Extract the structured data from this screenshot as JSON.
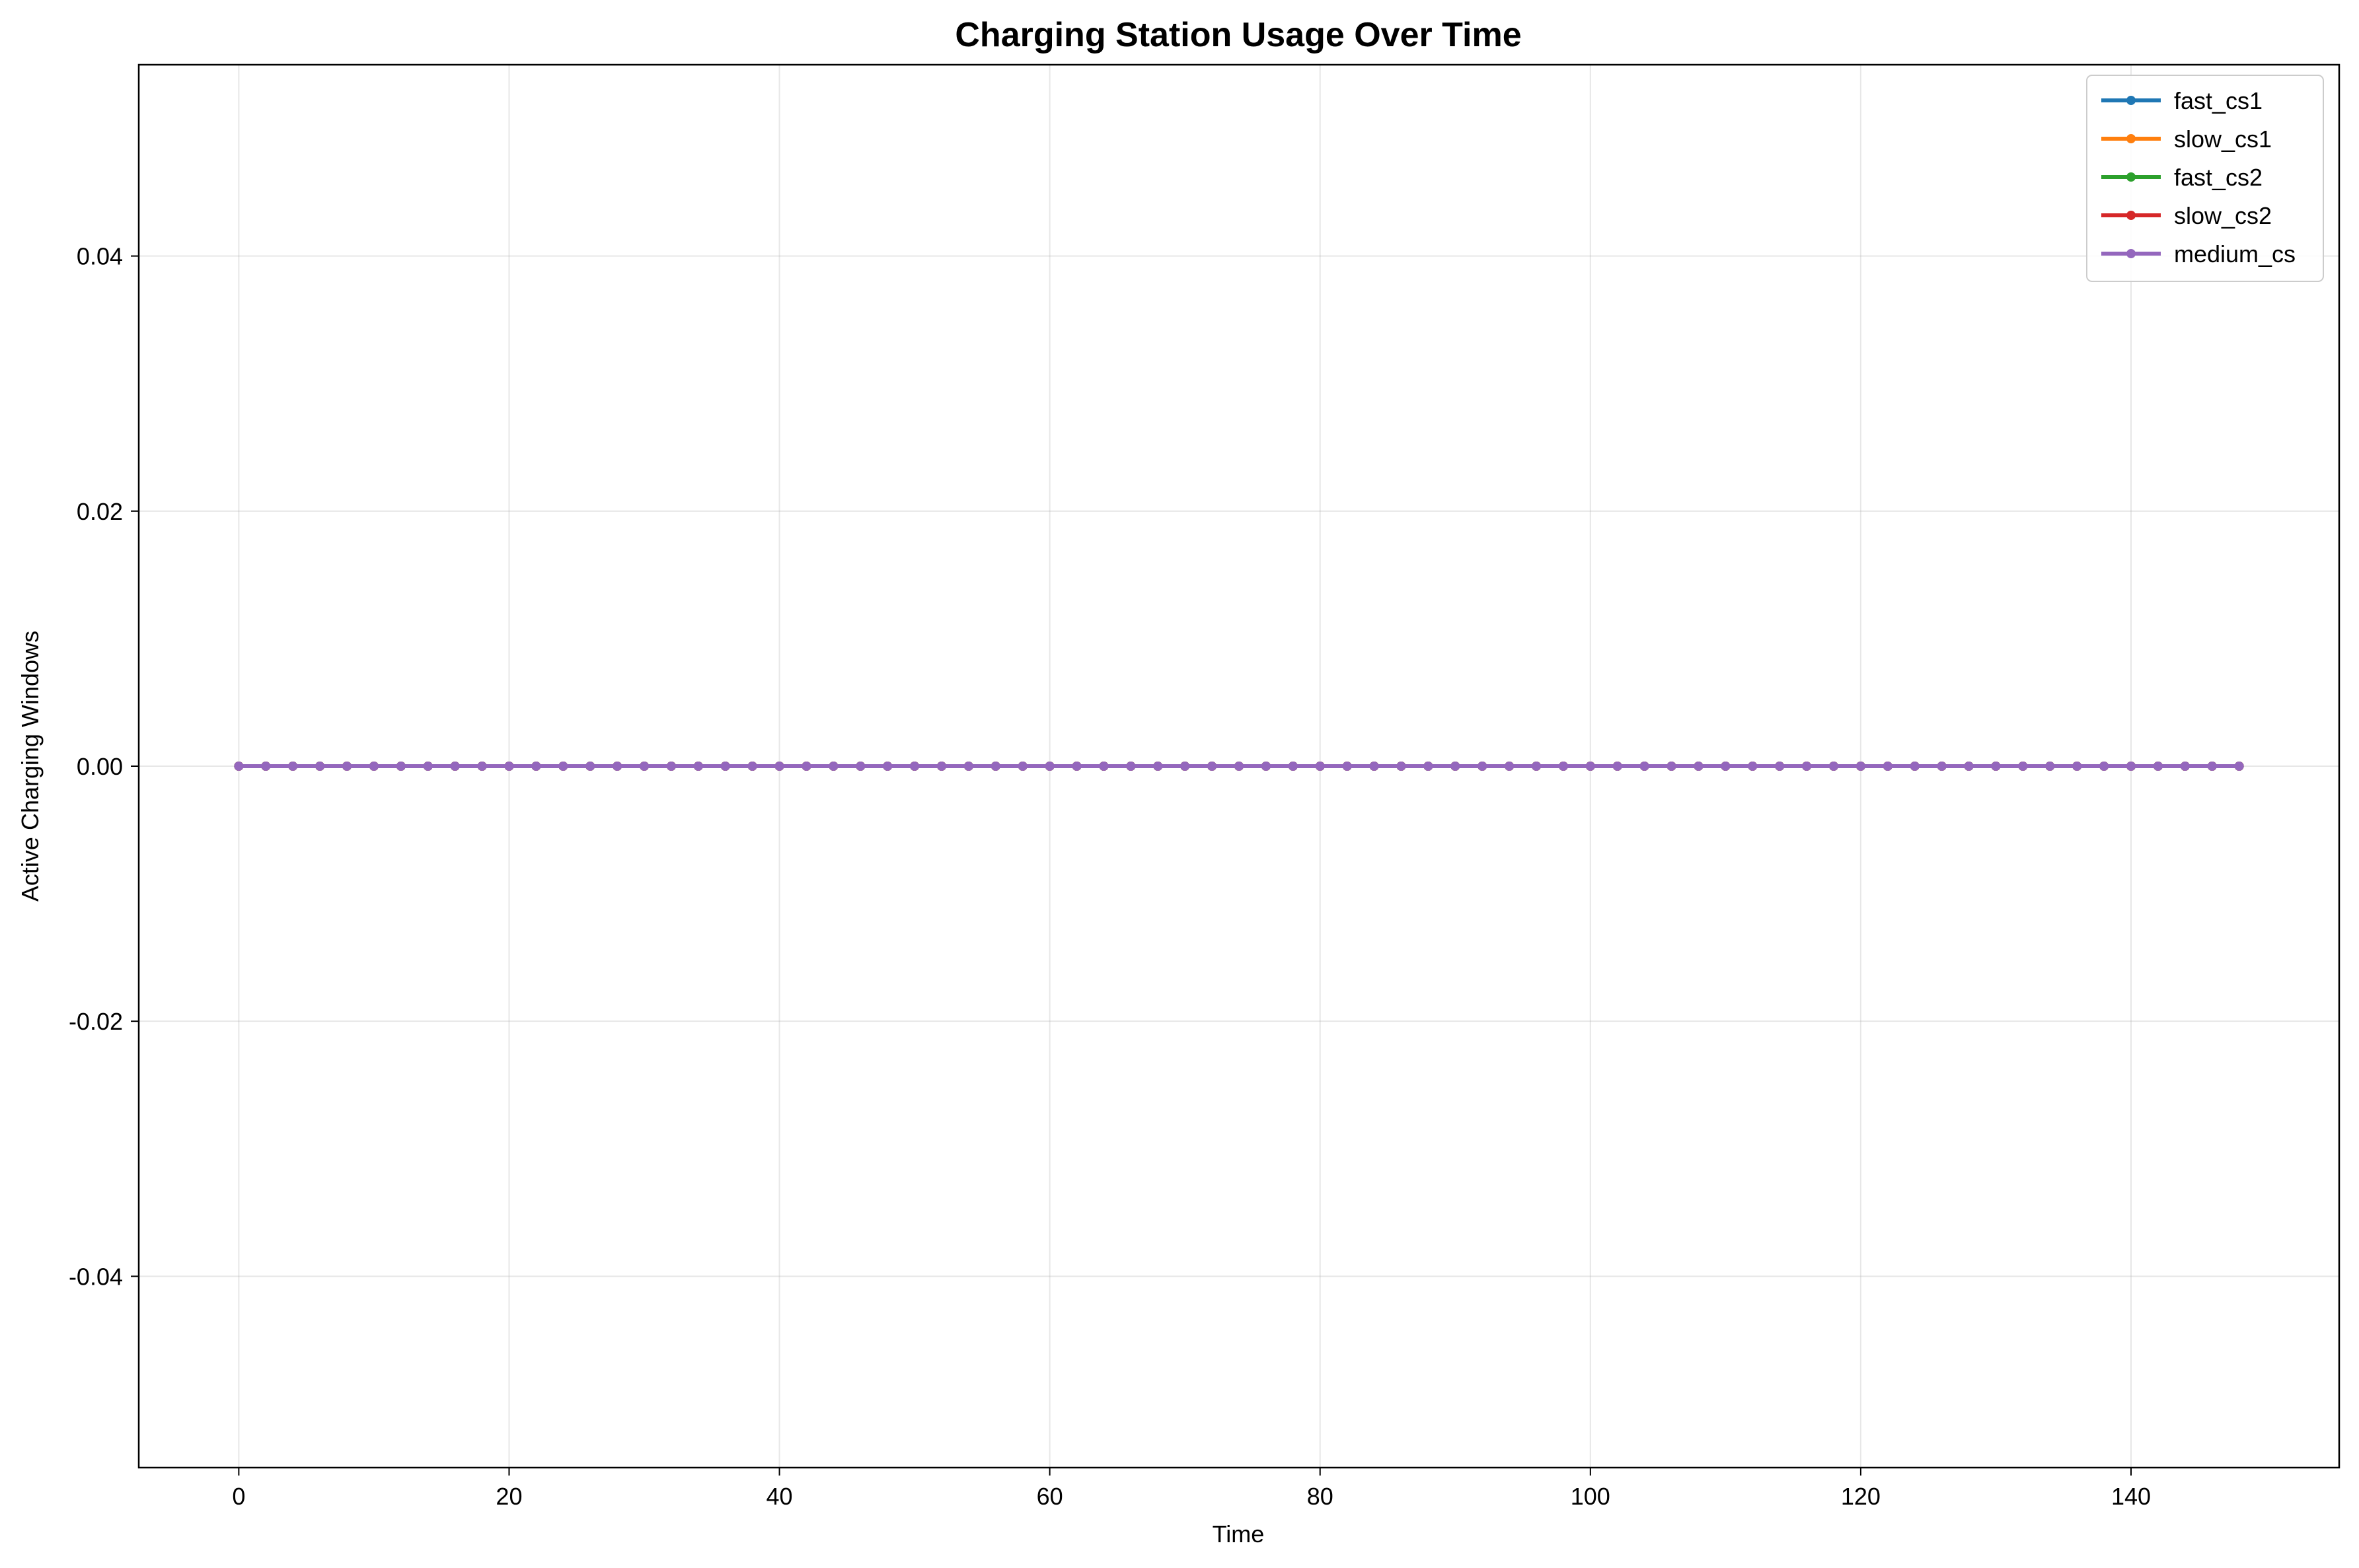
{
  "chart_data": {
    "type": "line",
    "title": "Charging Station Usage Over Time",
    "xlabel": "Time",
    "ylabel": "Active Charging Windows",
    "xlim": [
      -7.4,
      155.4
    ],
    "ylim": [
      -0.055,
      0.055
    ],
    "x_ticks": [
      0,
      20,
      40,
      60,
      80,
      100,
      120,
      140
    ],
    "x_tick_labels": [
      "0",
      "20",
      "40",
      "60",
      "80",
      "100",
      "120",
      "140"
    ],
    "y_ticks": [
      0.04,
      0.02,
      0.0,
      -0.02,
      -0.04
    ],
    "y_tick_labels": [
      "0.04",
      "0.02",
      "0.00",
      "-0.02",
      "-0.04"
    ],
    "grid": true,
    "legend_position": "top-right",
    "x": [
      0,
      2,
      4,
      6,
      8,
      10,
      12,
      14,
      16,
      18,
      20,
      22,
      24,
      26,
      28,
      30,
      32,
      34,
      36,
      38,
      40,
      42,
      44,
      46,
      48,
      50,
      52,
      54,
      56,
      58,
      60,
      62,
      64,
      66,
      68,
      70,
      72,
      74,
      76,
      78,
      80,
      82,
      84,
      86,
      88,
      90,
      92,
      94,
      96,
      98,
      100,
      102,
      104,
      106,
      108,
      110,
      112,
      114,
      116,
      118,
      120,
      122,
      124,
      126,
      128,
      130,
      132,
      134,
      136,
      138,
      140,
      142,
      144,
      146,
      148
    ],
    "series": [
      {
        "name": "fast_cs1",
        "color": "#1f77b4",
        "value": 0
      },
      {
        "name": "slow_cs1",
        "color": "#ff7f0e",
        "value": 0
      },
      {
        "name": "fast_cs2",
        "color": "#2ca02c",
        "value": 0
      },
      {
        "name": "slow_cs2",
        "color": "#d62728",
        "value": 0
      },
      {
        "name": "medium_cs",
        "color": "#9467bd",
        "value": 0
      }
    ]
  }
}
